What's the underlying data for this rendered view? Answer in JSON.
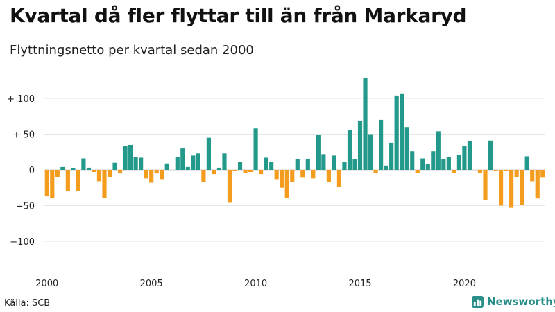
{
  "header": {
    "title": "Kvartal då fler flyttar till än från Markaryd",
    "subtitle": "Flyttningsnetto per kvartal sedan 2000"
  },
  "footer": {
    "source": "Källa: SCB",
    "brand": "Newsworthy"
  },
  "colors": {
    "positive": "#22998a",
    "negative": "#f39c1e",
    "brand": "#2a8f88"
  },
  "chart_data": {
    "type": "bar",
    "ylim": [
      -130,
      135
    ],
    "yticks": [
      100,
      50,
      0,
      -50,
      -100
    ],
    "ytick_labels": [
      "+ 100",
      "+  50",
      "0",
      "−50",
      "−100"
    ],
    "xtick_years": [
      2000,
      2005,
      2010,
      2015,
      2020
    ],
    "xtick_labels": [
      "2000",
      "2005",
      "2010",
      "2015",
      "2020"
    ],
    "x_start": "2000 Q1",
    "values": [
      -37,
      -39,
      -10,
      4,
      -30,
      2,
      -30,
      16,
      3,
      -3,
      -16,
      -39,
      -10,
      10,
      -5,
      33,
      35,
      18,
      17,
      -12,
      -18,
      -5,
      -13,
      9,
      0,
      18,
      30,
      4,
      20,
      23,
      -17,
      45,
      -6,
      3,
      23,
      -46,
      -2,
      11,
      -4,
      -3,
      58,
      -6,
      17,
      11,
      -13,
      -25,
      -39,
      -17,
      15,
      -11,
      15,
      -12,
      49,
      22,
      -17,
      20,
      -24,
      11,
      56,
      15,
      69,
      129,
      50,
      -4,
      70,
      6,
      38,
      104,
      107,
      60,
      26,
      -4,
      16,
      8,
      26,
      54,
      15,
      18,
      -4,
      21,
      34,
      40,
      0,
      -4,
      -42,
      41,
      -2,
      -50,
      -1,
      -53,
      -10,
      -49,
      19,
      -16,
      -40,
      -11
    ]
  }
}
